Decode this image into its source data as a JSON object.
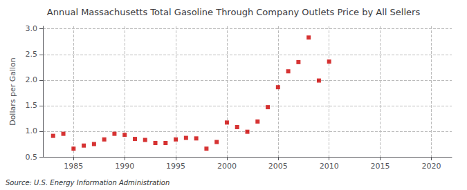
{
  "chart_data": {
    "type": "scatter",
    "title": "Annual Massachusetts Total Gasoline Through Company Outlets Price by All Sellers",
    "ylabel": "Dollars per Gallon",
    "source": "Source: U.S. Energy Information Administration",
    "x": [
      1983,
      1984,
      1985,
      1986,
      1987,
      1988,
      1989,
      1990,
      1991,
      1992,
      1993,
      1994,
      1995,
      1996,
      1997,
      1998,
      1999,
      2000,
      2001,
      2002,
      2003,
      2004,
      2005,
      2006,
      2007,
      2008,
      2009,
      2010
    ],
    "values": [
      0.91,
      0.95,
      0.66,
      0.72,
      0.75,
      0.84,
      0.95,
      0.93,
      0.85,
      0.83,
      0.77,
      0.77,
      0.84,
      0.87,
      0.86,
      0.66,
      0.79,
      1.17,
      1.08,
      0.99,
      1.19,
      1.47,
      1.86,
      2.17,
      2.35,
      2.83,
      1.99,
      2.36
    ],
    "color": "#cc0000",
    "marker": "square",
    "xlim": [
      1982,
      2022
    ],
    "ylim": [
      0.5,
      3.05
    ],
    "xticks": [
      1985,
      1990,
      1995,
      2000,
      2005,
      2010,
      2015,
      2020
    ],
    "yticks": [
      0.5,
      {
        "value": 1.0,
        "label": "1.0"
      },
      1.5,
      {
        "value": 2.0,
        "label": "2.0"
      },
      2.5,
      {
        "value": 3.0,
        "label": "3.0"
      }
    ],
    "grid": true
  }
}
